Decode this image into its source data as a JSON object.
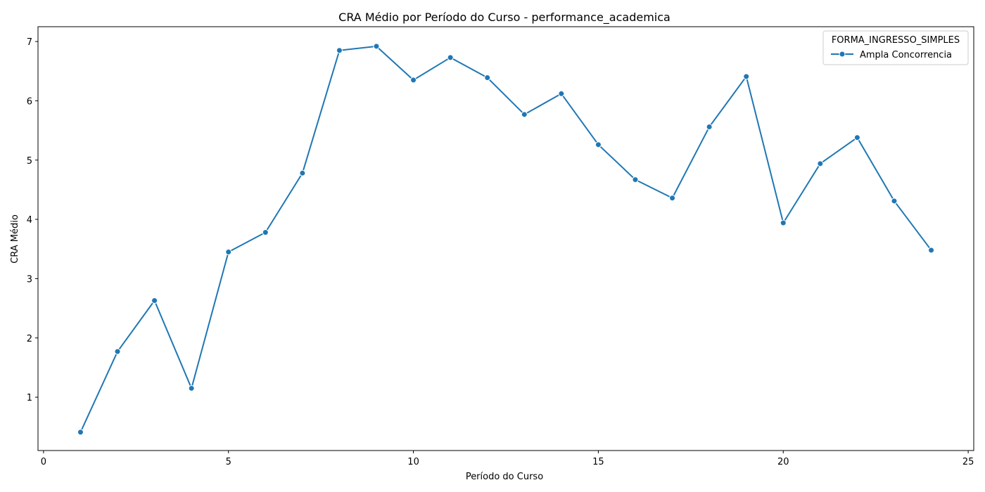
{
  "chart_data": {
    "type": "line",
    "title": "CRA Médio por Período do Curso - performance_academica",
    "xlabel": "Período do Curso",
    "ylabel": "CRA Médio",
    "xlim": [
      -0.15,
      25.15
    ],
    "ylim": [
      0.1,
      7.25
    ],
    "xticks": [
      0,
      5,
      10,
      15,
      20,
      25
    ],
    "yticks": [
      1,
      2,
      3,
      4,
      5,
      6,
      7
    ],
    "grid": false,
    "legend": {
      "title": "FORMA_INGRESSO_SIMPLES",
      "placement": "top-right"
    },
    "x": [
      1,
      2,
      3,
      4,
      5,
      6,
      7,
      8,
      9,
      10,
      11,
      12,
      13,
      14,
      15,
      16,
      17,
      18,
      19,
      20,
      21,
      22,
      23,
      24
    ],
    "series": [
      {
        "name": "Ampla Concorrencia",
        "color": "#1f77b4",
        "values": [
          0.41,
          1.77,
          2.63,
          1.15,
          3.45,
          3.78,
          4.78,
          6.85,
          6.92,
          6.35,
          6.73,
          6.39,
          5.77,
          6.12,
          5.26,
          4.67,
          4.36,
          5.56,
          6.41,
          3.94,
          4.94,
          5.38,
          4.31,
          3.48
        ]
      }
    ]
  }
}
